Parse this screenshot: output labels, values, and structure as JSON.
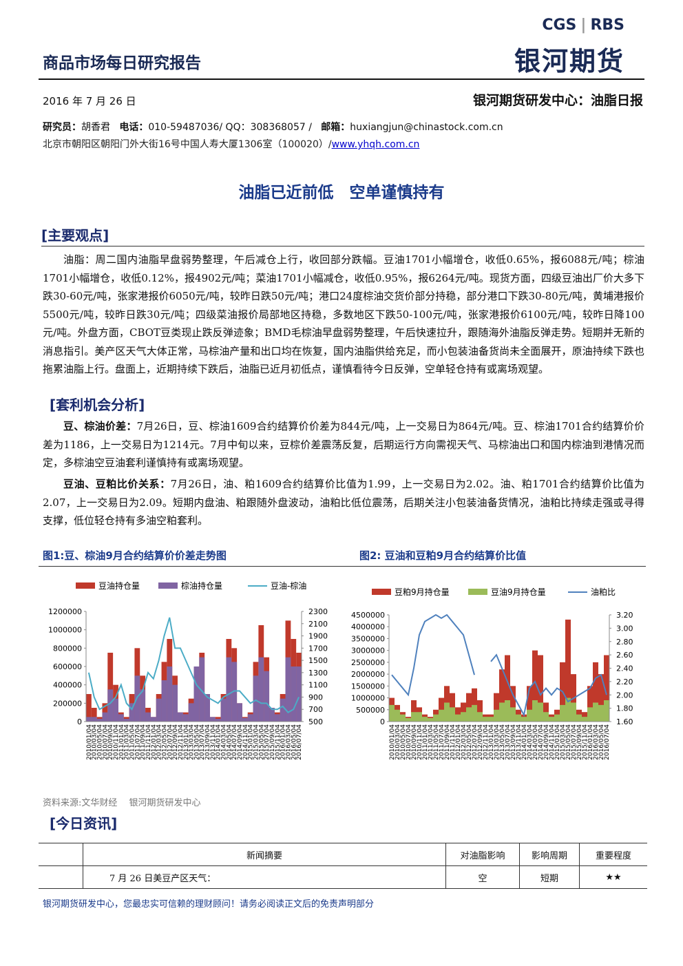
{
  "header": {
    "title": "商品市场每日研究报告",
    "logo_left": "CGS",
    "logo_right": "RBS",
    "brand": "银河期货",
    "date": "2016 年 7 月 26 日",
    "center": "银河期货研发中心：油脂日报"
  },
  "contact": {
    "analyst_label": "研究员：",
    "analyst": "胡香君",
    "phone_label": "电话：",
    "phone": "010-59487036/ QQ：308368057 /",
    "email_label": "邮箱：",
    "email": "huxiangjun@chinastock.com.cn",
    "address": "北京市朝阳区朝阳门外大街16号中国人寿大厦1306室（100020）/",
    "website": "www.yhqh.com.cn"
  },
  "headline": "油脂已近前低　空单谨慎持有",
  "sections": [
    {
      "title": "[主要观点]",
      "paragraphs": [
        {
          "text": "油脂：周二国内油脂早盘弱势整理，午后减仓上行，收回部分跌幅。豆油1701小幅增仓，收低0.65%，报6088元/吨；棕油1701小幅增仓，收低0.12%，报4902元/吨；菜油1701小幅减仓，收低0.95%，报6264元/吨。现货方面，四级豆油出厂价大多下跌30-60元/吨，张家港报价6050元/吨，较昨日跌50元/吨；港口24度棕油交货价部分持稳，部分港口下跌30-80元/吨，黄埔港报价5500元/吨，较昨日跌30元/吨；四级菜油报价局部地区持稳，多数地区下跌50-100元/吨，张家港报价6100元/吨，较昨日降100元/吨。外盘方面，CBOT豆类现止跌反弹迹象；BMD毛棕油早盘弱势整理，午后快速拉升，跟随海外油脂反弹走势。短期并无新的消息指引。美产区天气大体正常，马棕油产量和出口均在恢复，国内油脂供给充足，而小包装油备货尚未全面展开，原油持续下跌也拖累油脂上行。盘面上，近期持续下跌后，油脂已近月初低点，谨慎看待今日反弹，空单轻仓持有或离场观望。"
        }
      ]
    },
    {
      "title": "[套利机会分析]",
      "paragraphs": [
        {
          "lead": "豆、棕油价差：",
          "text": "7月26日，豆、棕油1609合约结算价价差为844元/吨，上一交易日为864元/吨。豆、棕油1701合约结算价价差为1186，上一交易日为1214元。7月中旬以来，豆棕价差震荡反复，后期运行方向需视天气、马棕油出口和国内棕油到港情况而定，多棕油空豆油套利谨慎持有或离场观望。"
        },
        {
          "lead": "豆油、豆粕比价关系：",
          "text": "7月26日，油、粕1609合约结算价比值为1.99，上一交易日为2.02。油、粕1701合约结算价比值为2.07，上一交易日为2.09。短期内盘油、粕跟随外盘波动，油粕比低位震荡，后期关注小包装油备货情况，油粕比持续走强或寻得支撑，低位轻仓持有多油空粕套利。"
        }
      ]
    }
  ],
  "chart_data": [
    {
      "type": "combo",
      "title": "图1:豆、棕油9月合约结算价价差走势图",
      "categories": [
        "2010/01/04",
        "2010/03/04",
        "2010/05/04",
        "2010/07/04",
        "2010/09/04",
        "2010/11/04",
        "2011/01/04",
        "2011/03/04",
        "2011/05/04",
        "2011/07/04",
        "2011/09/04",
        "2011/11/04",
        "2012/01/04",
        "2012/03/04",
        "2012/05/04",
        "2012/07/04",
        "2012/09/04",
        "2012/11/04",
        "2013/01/04",
        "2013/03/04",
        "2013/05/04",
        "2013/07/04",
        "2013/09/04",
        "2013/11/04",
        "2014/01/04",
        "2014/03/04",
        "2014/05/04",
        "2014/07/04",
        "2014/09/04",
        "2014/11/04",
        "2015/01/04",
        "2015/03/04",
        "2015/05/04",
        "2015/07/04",
        "2015/09/04",
        "2015/11/04",
        "2016/01/04",
        "2016/03/04",
        "2016/05/04",
        "2016/07/04"
      ],
      "series": [
        {
          "name": "豆油持仓量",
          "type": "bar",
          "color": "#c0392b",
          "values": [
            300000,
            150000,
            50000,
            200000,
            750000,
            400000,
            100000,
            50000,
            300000,
            800000,
            500000,
            150000,
            50000,
            300000,
            650000,
            900000,
            500000,
            100000,
            100000,
            250000,
            600000,
            750000,
            300000,
            50000,
            50000,
            300000,
            900000,
            800000,
            200000,
            50000,
            100000,
            650000,
            1050000,
            700000,
            150000,
            100000,
            300000,
            1100000,
            900000,
            750000
          ]
        },
        {
          "name": "棕油持仓量",
          "type": "bar",
          "color": "#8064a2",
          "values": [
            50000,
            50000,
            30000,
            100000,
            350000,
            250000,
            80000,
            30000,
            200000,
            500000,
            350000,
            100000,
            50000,
            250000,
            450000,
            600000,
            400000,
            100000,
            80000,
            200000,
            600000,
            700000,
            300000,
            50000,
            30000,
            250000,
            700000,
            650000,
            200000,
            40000,
            80000,
            500000,
            700000,
            550000,
            150000,
            80000,
            250000,
            700000,
            600000,
            600000
          ]
        },
        {
          "name": "豆油-棕油",
          "type": "line",
          "axis": "y2",
          "color": "#4bacc6",
          "values": [
            1300,
            900,
            700,
            750,
            800,
            900,
            1100,
            800,
            700,
            900,
            1000,
            1300,
            1200,
            1500,
            1900,
            2200,
            1700,
            1700,
            1500,
            1300,
            1100,
            1000,
            900,
            850,
            800,
            900,
            950,
            1000,
            1000,
            900,
            800,
            850,
            800,
            800,
            700,
            700,
            750,
            650,
            700,
            900
          ]
        }
      ],
      "ylim": [
        0,
        1200000
      ],
      "yticks": [
        0,
        200000,
        400000,
        600000,
        800000,
        1000000,
        1200000
      ],
      "y2lim": [
        500,
        2300
      ],
      "y2ticks": [
        500,
        700,
        900,
        1100,
        1300,
        1500,
        1700,
        1900,
        2100,
        2300
      ]
    },
    {
      "type": "combo",
      "title": "图2: 豆油和豆粕9月合约结算价比值",
      "categories": [
        "2010/01/04",
        "2010/03/04",
        "2010/05/04",
        "2010/07/04",
        "2010/09/04",
        "2010/11/04",
        "2011/01/04",
        "2011/03/04",
        "2011/05/04",
        "2011/07/04",
        "2011/09/04",
        "2011/11/04",
        "2012/01/04",
        "2012/03/04",
        "2012/05/04",
        "2012/07/04",
        "2012/09/04",
        "2012/11/04",
        "2013/01/04",
        "2013/03/04",
        "2013/05/04",
        "2013/07/04",
        "2013/09/04",
        "2013/11/04",
        "2014/01/04",
        "2014/03/04",
        "2014/05/04",
        "2014/07/04",
        "2014/09/04",
        "2014/11/04",
        "2015/01/04",
        "2015/03/04",
        "2015/05/04",
        "2015/07/04",
        "2015/09/04",
        "2015/11/04",
        "2016/01/04",
        "2016/03/04",
        "2016/05/04",
        "2016/07/04"
      ],
      "series": [
        {
          "name": "豆粕9月持仓量",
          "type": "bar",
          "color": "#c0392b",
          "values": [
            1000000,
            700000,
            400000,
            200000,
            900000,
            600000,
            300000,
            200000,
            500000,
            1000000,
            1500000,
            1200000,
            600000,
            800000,
            1200000,
            1400000,
            900000,
            300000,
            300000,
            1200000,
            2200000,
            2800000,
            1500000,
            500000,
            300000,
            1500000,
            3000000,
            2800000,
            800000,
            300000,
            500000,
            2500000,
            4300000,
            2000000,
            500000,
            400000,
            1500000,
            2500000,
            2000000,
            2800000
          ]
        },
        {
          "name": "豆油9月持仓量",
          "type": "bar",
          "color": "#9bbb59",
          "values": [
            700000,
            500000,
            300000,
            150000,
            400000,
            400000,
            200000,
            150000,
            300000,
            500000,
            800000,
            600000,
            300000,
            400000,
            600000,
            700000,
            400000,
            200000,
            200000,
            500000,
            800000,
            900000,
            600000,
            300000,
            200000,
            500000,
            900000,
            800000,
            400000,
            200000,
            300000,
            700000,
            1000000,
            800000,
            300000,
            200000,
            600000,
            800000,
            700000,
            900000
          ]
        },
        {
          "name": "油粕比",
          "type": "line",
          "axis": "y2",
          "color": "#4f81bd",
          "values": [
            2.3,
            2.2,
            2.1,
            2.0,
            2.4,
            2.9,
            3.1,
            3.15,
            3.2,
            3.15,
            3.2,
            3.1,
            3.0,
            2.9,
            2.6,
            2.3,
            null,
            null,
            2.5,
            2.6,
            2.4,
            2.2,
            2.0,
            1.85,
            1.7,
            2.1,
            2.2,
            2.0,
            2.1,
            2.0,
            2.1,
            2.05,
            1.9,
            1.95,
            2.0,
            2.05,
            2.1,
            2.25,
            2.3,
            2.0
          ]
        }
      ],
      "ylim": [
        0,
        4500000
      ],
      "yticks": [
        0,
        500000,
        1000000,
        1500000,
        2000000,
        2500000,
        3000000,
        3500000,
        4000000,
        4500000
      ],
      "y2lim": [
        1.6,
        3.2
      ],
      "y2ticks": [
        {
          "value": 1.6,
          "label": "1.60"
        },
        {
          "value": 1.8,
          "label": "1.80"
        },
        {
          "value": 2.0,
          "label": "2.00"
        },
        {
          "value": 2.2,
          "label": "2.20"
        },
        {
          "value": 2.4,
          "label": "2.40"
        },
        {
          "value": 2.6,
          "label": "2.60"
        },
        {
          "value": 2.8,
          "label": "2.80"
        },
        {
          "value": 3.0,
          "label": "3.00"
        },
        {
          "value": 3.2,
          "label": "3.20"
        }
      ]
    }
  ],
  "source": "资料来源:文华财经　 银河期货研发中心",
  "news": {
    "title": "[今日资讯]",
    "header": [
      "新闻摘要",
      "对油脂影响",
      "影响周期",
      "重要程度"
    ],
    "rows": [
      [
        "7 月 26 日美豆产区天气：",
        "空",
        "短期",
        "★★"
      ]
    ]
  },
  "footer": "银河期货研发中心，您最忠实可信赖的理财顾问！请务必阅读正文后的免责声明部分"
}
